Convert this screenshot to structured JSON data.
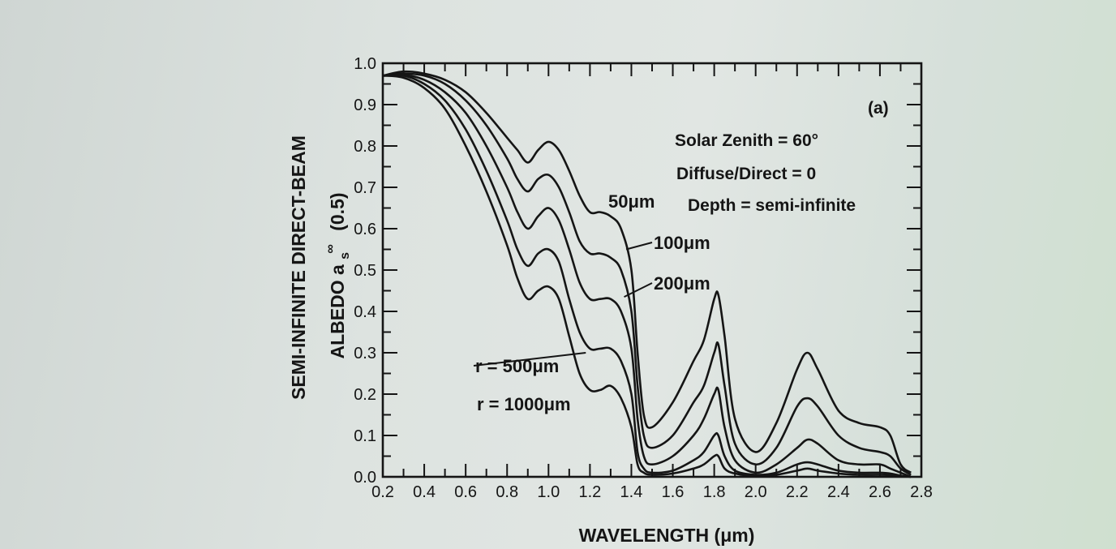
{
  "chart_data": {
    "type": "line",
    "xlabel": "WAVELENGTH (μm)",
    "ylabel_line1": "SEMI-INFINITE DIRECT-BEAM",
    "ylabel_line2": "ALBEDO a",
    "ylabel_sup": "∞",
    "ylabel_sub": "s",
    "ylabel_tail": "(0.5)",
    "panel_label": "(a)",
    "annotations": [
      "Solar Zenith = 60°",
      "Diffuse/Direct = 0",
      "Depth = semi-infinite"
    ],
    "xlim": [
      0.2,
      2.8
    ],
    "ylim": [
      0.0,
      1.0
    ],
    "x_tick_labels": [
      "0.2",
      "0.4",
      "0.6",
      "0.8",
      "1.0",
      "1.2",
      "1.4",
      "1.6",
      "1.8",
      "2.0",
      "2.2",
      "2.4",
      "2.6",
      "2.8"
    ],
    "y_tick_labels": [
      "0.0",
      "0.1",
      "0.2",
      "0.3",
      "0.4",
      "0.5",
      "0.6",
      "0.7",
      "0.8",
      "0.9",
      "1.0"
    ],
    "grid": false,
    "series": [
      {
        "name": "50μm",
        "x": [
          0.2,
          0.3,
          0.4,
          0.5,
          0.6,
          0.7,
          0.8,
          0.85,
          0.9,
          0.95,
          1.0,
          1.05,
          1.1,
          1.15,
          1.2,
          1.25,
          1.3,
          1.35,
          1.4,
          1.43,
          1.46,
          1.5,
          1.6,
          1.7,
          1.75,
          1.8,
          1.82,
          1.85,
          1.9,
          2.0,
          2.1,
          2.2,
          2.25,
          2.3,
          2.4,
          2.5,
          2.6,
          2.65,
          2.7,
          2.75
        ],
        "y": [
          0.97,
          0.98,
          0.975,
          0.96,
          0.93,
          0.88,
          0.82,
          0.79,
          0.76,
          0.79,
          0.81,
          0.79,
          0.74,
          0.68,
          0.64,
          0.64,
          0.63,
          0.6,
          0.5,
          0.3,
          0.15,
          0.12,
          0.18,
          0.28,
          0.33,
          0.43,
          0.44,
          0.34,
          0.14,
          0.06,
          0.13,
          0.26,
          0.3,
          0.26,
          0.16,
          0.13,
          0.12,
          0.1,
          0.03,
          0.01
        ]
      },
      {
        "name": "100μm",
        "x": [
          0.2,
          0.3,
          0.4,
          0.5,
          0.6,
          0.7,
          0.8,
          0.85,
          0.9,
          0.95,
          1.0,
          1.05,
          1.1,
          1.15,
          1.2,
          1.25,
          1.3,
          1.35,
          1.4,
          1.43,
          1.46,
          1.5,
          1.6,
          1.7,
          1.75,
          1.8,
          1.82,
          1.85,
          1.9,
          2.0,
          2.1,
          2.2,
          2.25,
          2.3,
          2.4,
          2.5,
          2.6,
          2.65,
          2.7,
          2.75
        ],
        "y": [
          0.97,
          0.975,
          0.97,
          0.95,
          0.91,
          0.85,
          0.77,
          0.72,
          0.69,
          0.72,
          0.73,
          0.7,
          0.64,
          0.57,
          0.54,
          0.54,
          0.53,
          0.5,
          0.4,
          0.22,
          0.1,
          0.07,
          0.1,
          0.18,
          0.22,
          0.3,
          0.32,
          0.22,
          0.08,
          0.03,
          0.07,
          0.17,
          0.19,
          0.17,
          0.1,
          0.07,
          0.06,
          0.05,
          0.02,
          0.005
        ]
      },
      {
        "name": "200μm",
        "x": [
          0.2,
          0.3,
          0.4,
          0.5,
          0.6,
          0.7,
          0.8,
          0.85,
          0.9,
          0.95,
          1.0,
          1.05,
          1.1,
          1.15,
          1.2,
          1.25,
          1.3,
          1.35,
          1.4,
          1.43,
          1.46,
          1.5,
          1.6,
          1.7,
          1.75,
          1.8,
          1.82,
          1.85,
          1.9,
          2.0,
          2.1,
          2.2,
          2.25,
          2.3,
          2.4,
          2.5,
          2.6,
          2.65,
          2.7,
          2.75
        ],
        "y": [
          0.97,
          0.972,
          0.96,
          0.93,
          0.88,
          0.8,
          0.7,
          0.64,
          0.6,
          0.63,
          0.65,
          0.62,
          0.55,
          0.47,
          0.43,
          0.43,
          0.43,
          0.4,
          0.31,
          0.14,
          0.05,
          0.03,
          0.05,
          0.1,
          0.14,
          0.2,
          0.21,
          0.12,
          0.04,
          0.01,
          0.03,
          0.07,
          0.09,
          0.08,
          0.04,
          0.03,
          0.03,
          0.02,
          0.01,
          0.0
        ]
      },
      {
        "name": "r = 500μm",
        "x": [
          0.2,
          0.3,
          0.4,
          0.5,
          0.6,
          0.7,
          0.8,
          0.85,
          0.9,
          0.95,
          1.0,
          1.05,
          1.1,
          1.15,
          1.2,
          1.25,
          1.3,
          1.35,
          1.4,
          1.43,
          1.46,
          1.5,
          1.6,
          1.7,
          1.75,
          1.8,
          1.82,
          1.85,
          1.9,
          2.0,
          2.1,
          2.2,
          2.25,
          2.3,
          2.4,
          2.5,
          2.6,
          2.65,
          2.7,
          2.75
        ],
        "y": [
          0.97,
          0.97,
          0.95,
          0.91,
          0.84,
          0.74,
          0.62,
          0.55,
          0.51,
          0.54,
          0.55,
          0.52,
          0.43,
          0.35,
          0.31,
          0.31,
          0.31,
          0.28,
          0.2,
          0.06,
          0.02,
          0.01,
          0.015,
          0.04,
          0.06,
          0.1,
          0.1,
          0.05,
          0.015,
          0.005,
          0.01,
          0.03,
          0.035,
          0.03,
          0.015,
          0.01,
          0.01,
          0.008,
          0.003,
          0.0
        ]
      },
      {
        "name": "r = 1000μm",
        "x": [
          0.2,
          0.3,
          0.4,
          0.5,
          0.6,
          0.7,
          0.8,
          0.85,
          0.9,
          0.95,
          1.0,
          1.05,
          1.1,
          1.15,
          1.2,
          1.25,
          1.3,
          1.35,
          1.4,
          1.43,
          1.46,
          1.5,
          1.6,
          1.7,
          1.75,
          1.8,
          1.82,
          1.85,
          1.9,
          2.0,
          2.1,
          2.2,
          2.25,
          2.3,
          2.4,
          2.5,
          2.6,
          2.65,
          2.7,
          2.75
        ],
        "y": [
          0.97,
          0.965,
          0.94,
          0.89,
          0.8,
          0.69,
          0.56,
          0.48,
          0.43,
          0.45,
          0.46,
          0.43,
          0.34,
          0.25,
          0.21,
          0.21,
          0.22,
          0.19,
          0.12,
          0.03,
          0.01,
          0.005,
          0.008,
          0.02,
          0.03,
          0.05,
          0.05,
          0.02,
          0.008,
          0.002,
          0.005,
          0.015,
          0.02,
          0.015,
          0.008,
          0.005,
          0.005,
          0.004,
          0.002,
          0.0
        ]
      }
    ],
    "series_labels": [
      {
        "text": "50μm",
        "series": "50μm"
      },
      {
        "text": "100μm",
        "series": "100μm"
      },
      {
        "text": "200μm",
        "series": "200μm"
      },
      {
        "text": "r = 500μm",
        "series": "r = 500μm"
      },
      {
        "text": "r = 1000μm",
        "series": "r = 1000μm"
      }
    ]
  }
}
